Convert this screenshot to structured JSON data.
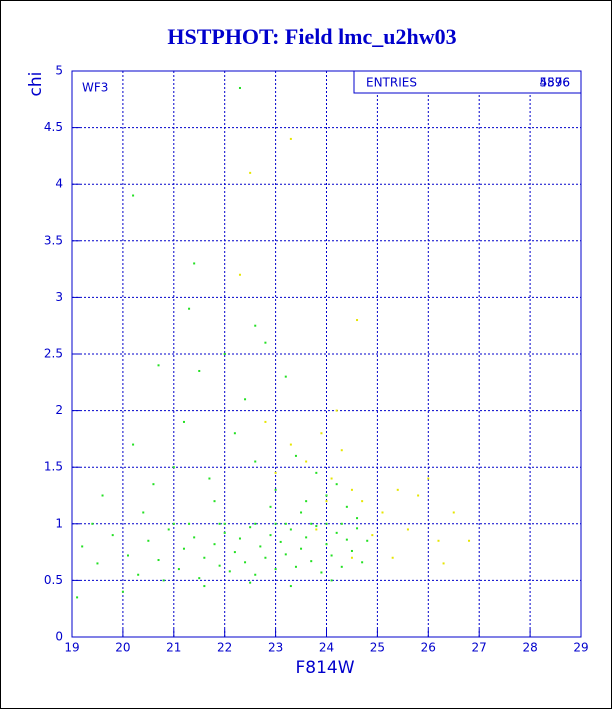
{
  "chart_data": {
    "type": "scatter",
    "title": "HSTPHOT: Field lmc_u2hw03",
    "x_label": "F814W",
    "y_label": "chi",
    "annotation": "WF3",
    "stats_label": "ENTRIES",
    "stats_values": [
      "4896",
      "5576"
    ],
    "xlim": [
      19,
      29
    ],
    "ylim": [
      0,
      5
    ],
    "xticks": [
      19,
      20,
      21,
      22,
      23,
      24,
      25,
      26,
      27,
      28,
      29
    ],
    "yticks": [
      0,
      0.5,
      1,
      1.5,
      2,
      2.5,
      3,
      3.5,
      4,
      4.5,
      5
    ],
    "grid": true,
    "series": [
      {
        "color": "#22e022",
        "x": [
          19.2,
          19.5,
          19.8,
          20.1,
          20.3,
          20.5,
          20.7,
          20.9,
          21.1,
          21.2,
          21.4,
          21.5,
          21.6,
          21.8,
          21.9,
          22.0,
          22.1,
          22.2,
          22.3,
          22.4,
          22.5,
          22.6,
          22.7,
          22.8,
          22.9,
          23.0,
          23.1,
          23.2,
          23.3,
          23.4,
          23.5,
          23.6,
          23.7,
          23.8,
          23.9,
          24.0,
          24.1,
          24.2,
          24.3,
          24.4,
          24.5,
          24.6,
          24.7,
          24.8,
          21.0,
          22.0,
          23.0,
          24.0,
          21.3,
          21.9,
          22.6,
          23.2,
          23.7,
          24.3,
          19.6,
          20.2,
          20.6,
          21.0,
          21.2,
          21.5,
          21.7,
          22.0,
          22.2,
          22.4,
          22.6,
          22.8,
          23.0,
          23.2,
          23.4,
          23.6,
          23.8,
          24.0,
          24.2,
          24.4,
          20.0,
          19.1,
          21.4,
          22.3,
          20.2,
          21.3,
          22.6,
          20.7,
          19.4,
          20.4,
          21.8,
          22.9,
          23.5,
          24.6,
          24.1,
          23.3,
          22.5,
          21.6,
          20.8
        ],
        "y": [
          0.8,
          0.65,
          0.9,
          0.72,
          0.55,
          0.85,
          0.68,
          0.95,
          0.6,
          0.78,
          0.88,
          0.52,
          0.7,
          0.82,
          0.63,
          0.92,
          0.58,
          0.75,
          0.87,
          0.66,
          0.97,
          0.55,
          0.8,
          0.7,
          0.9,
          0.6,
          0.84,
          0.73,
          0.95,
          0.62,
          0.78,
          0.88,
          0.67,
          0.98,
          0.57,
          0.82,
          0.72,
          0.92,
          0.62,
          0.86,
          0.76,
          0.96,
          0.66,
          0.85,
          1.0,
          1.0,
          1.0,
          1.0,
          1.0,
          1.0,
          1.0,
          1.0,
          1.0,
          1.0,
          1.25,
          1.7,
          1.35,
          1.5,
          1.9,
          2.35,
          1.4,
          2.5,
          1.8,
          2.1,
          1.55,
          2.6,
          1.3,
          2.3,
          1.6,
          1.2,
          1.45,
          1.25,
          1.35,
          1.15,
          0.4,
          0.35,
          3.3,
          4.85,
          3.9,
          2.9,
          2.75,
          2.4,
          1.0,
          1.1,
          1.2,
          1.15,
          1.1,
          1.05,
          0.5,
          0.45,
          0.48,
          0.45,
          0.5
        ]
      },
      {
        "color": "#e6e600",
        "x": [
          23.3,
          23.6,
          23.9,
          24.1,
          24.3,
          24.5,
          24.7,
          24.9,
          25.1,
          25.4,
          25.6,
          25.8,
          26.0,
          26.2,
          26.5,
          26.8,
          25.3,
          23.0,
          22.5,
          23.3,
          22.3,
          24.6,
          24.2,
          22.8,
          24.0,
          23.8,
          24.5,
          26.3
        ],
        "y": [
          1.7,
          1.55,
          1.8,
          1.4,
          1.65,
          1.3,
          1.2,
          0.9,
          1.1,
          1.3,
          0.95,
          1.25,
          1.4,
          0.85,
          1.1,
          0.85,
          0.7,
          1.45,
          4.1,
          4.4,
          3.2,
          2.8,
          2.0,
          1.9,
          1.2,
          0.95,
          0.7,
          0.65
        ]
      }
    ]
  }
}
